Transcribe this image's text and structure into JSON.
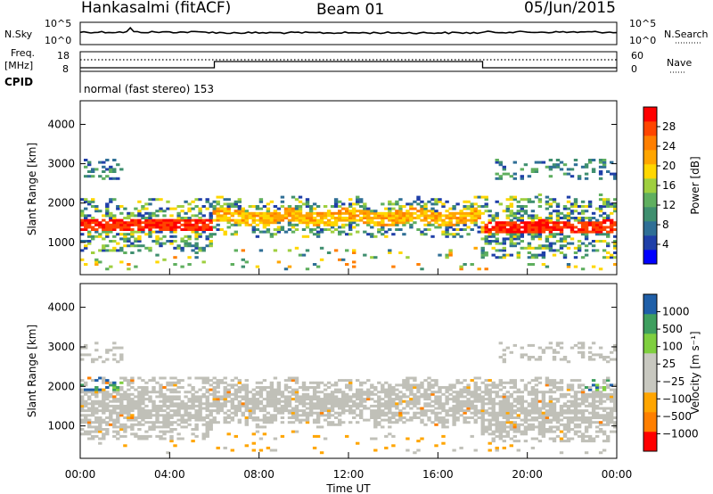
{
  "header": {
    "station": "Hankasalmi (fitACF)",
    "beam": "Beam 01",
    "date": "05/Jun/2015"
  },
  "nsky_panel": {
    "left_label": "N.Sky",
    "right_label": "N.Search",
    "left_ticks": [
      "10^5",
      "10^0"
    ],
    "right_ticks": [
      "10^5",
      "10^0"
    ]
  },
  "freq_panel": {
    "left_label_top": "Freq.",
    "left_label_bottom": "[MHz]",
    "right_label": "Nave",
    "left_ticks": [
      "18",
      "8"
    ],
    "right_ticks": [
      "60",
      "0"
    ]
  },
  "cpid_panel": {
    "label": "CPID",
    "text": "normal (fast stereo) 153"
  },
  "colors": {
    "power_scale": [
      "#0000ff",
      "#1f3fa8",
      "#2f6f96",
      "#3f8f6f",
      "#5faf5f",
      "#9fcf3f",
      "#ffd700",
      "#ffa500",
      "#ff7f00",
      "#ff4500",
      "#ff0000"
    ],
    "velocity_scale": [
      "#ff0000",
      "#ff7f00",
      "#ffa500",
      "#c8c8c0",
      "#c8c8c0",
      "#7fcf3f",
      "#3f9f5f",
      "#1f5fa8"
    ],
    "ground_scatter": "#c0c0b8"
  },
  "chart_data": [
    {
      "type": "heatmap",
      "panel": "power",
      "title": "",
      "xlabel": "Time UT",
      "ylabel": "Slant Range [km]",
      "xlim": [
        0,
        24
      ],
      "ylim": [
        180,
        4600
      ],
      "x_tick_labels": [
        "00:00",
        "04:00",
        "08:00",
        "12:00",
        "16:00",
        "20:00",
        "00:00"
      ],
      "y_tick_labels": [
        "1000",
        "2000",
        "3000",
        "4000"
      ],
      "y_ticks": [
        1000,
        2000,
        3000,
        4000
      ],
      "colorbar": {
        "label": "Power [dB]",
        "ticks": [
          "4",
          "8",
          "12",
          "16",
          "20",
          "24",
          "28"
        ],
        "range": [
          0,
          32
        ]
      },
      "description_of_bands": [
        {
          "t_start": 0,
          "t_end": 6,
          "range_center": 1500,
          "range_halfwidth": 200,
          "power": 27
        },
        {
          "t_start": 6,
          "t_end": 18,
          "range_center": 1600,
          "range_halfwidth": 300,
          "power": 18
        },
        {
          "t_start": 18,
          "t_end": 24,
          "range_center": 1400,
          "range_halfwidth": 200,
          "power": 27
        }
      ]
    },
    {
      "type": "heatmap",
      "panel": "velocity",
      "title": "",
      "xlabel": "Time UT",
      "ylabel": "Slant Range [km]",
      "xlim": [
        0,
        24
      ],
      "ylim": [
        180,
        4600
      ],
      "x_tick_labels": [
        "00:00",
        "04:00",
        "08:00",
        "12:00",
        "16:00",
        "20:00",
        "00:00"
      ],
      "y_tick_labels": [
        "1000",
        "2000",
        "3000",
        "4000"
      ],
      "y_ticks": [
        1000,
        2000,
        3000,
        4000
      ],
      "colorbar": {
        "label": "Velocity [m s⁻¹]",
        "ticks": [
          "1000",
          "500",
          "100",
          "25",
          "−25",
          "−100",
          "−500",
          "−1000"
        ]
      }
    }
  ],
  "x_axis_title": "Time UT"
}
